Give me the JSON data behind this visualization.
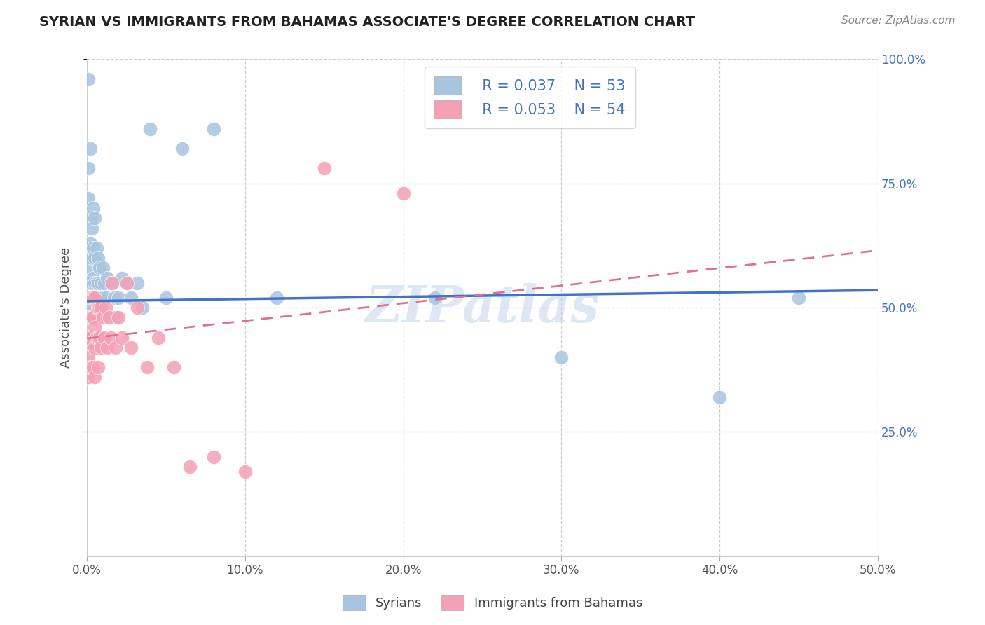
{
  "title": "SYRIAN VS IMMIGRANTS FROM BAHAMAS ASSOCIATE'S DEGREE CORRELATION CHART",
  "source": "Source: ZipAtlas.com",
  "ylabel": "Associate's Degree",
  "xlim": [
    0.0,
    0.5
  ],
  "ylim": [
    0.0,
    1.0
  ],
  "xticks": [
    0.0,
    0.1,
    0.2,
    0.3,
    0.4,
    0.5
  ],
  "xticklabels": [
    "0.0%",
    "10.0%",
    "20.0%",
    "30.0%",
    "40.0%",
    "50.0%"
  ],
  "yticks": [
    0.25,
    0.5,
    0.75,
    1.0
  ],
  "yticklabels": [
    "25.0%",
    "50.0%",
    "75.0%",
    "100.0%"
  ],
  "legend_R1": "R = 0.037",
  "legend_N1": "N = 53",
  "legend_R2": "R = 0.053",
  "legend_N2": "N = 54",
  "color_syrian": "#a8c4e0",
  "color_bahamas": "#f4a0b5",
  "color_text_blue": "#4472c4",
  "color_text_dark": "#222222",
  "reg_color_syrian": "#4472c4",
  "reg_color_bahamas": "#e07090",
  "grid_color": "#cccccc",
  "title_color": "#222222",
  "source_color": "#888888",
  "watermark_color": "#d0dff0",
  "syr_line_y0": 0.513,
  "syr_line_y1": 0.535,
  "bah_line_y0": 0.438,
  "bah_line_y1": 0.615,
  "syrians_x": [
    0.001,
    0.001,
    0.001,
    0.002,
    0.002,
    0.002,
    0.002,
    0.003,
    0.003,
    0.003,
    0.003,
    0.003,
    0.004,
    0.004,
    0.004,
    0.004,
    0.004,
    0.005,
    0.005,
    0.005,
    0.005,
    0.006,
    0.006,
    0.007,
    0.007,
    0.007,
    0.008,
    0.008,
    0.009,
    0.009,
    0.01,
    0.01,
    0.011,
    0.012,
    0.013,
    0.015,
    0.017,
    0.018,
    0.02,
    0.022,
    0.025,
    0.028,
    0.032,
    0.035,
    0.04,
    0.05,
    0.06,
    0.08,
    0.12,
    0.22,
    0.3,
    0.4,
    0.45
  ],
  "syrians_y": [
    0.96,
    0.78,
    0.72,
    0.68,
    0.63,
    0.58,
    0.82,
    0.66,
    0.6,
    0.55,
    0.52,
    0.5,
    0.7,
    0.62,
    0.56,
    0.52,
    0.48,
    0.68,
    0.6,
    0.55,
    0.5,
    0.62,
    0.55,
    0.6,
    0.55,
    0.5,
    0.58,
    0.52,
    0.55,
    0.5,
    0.58,
    0.52,
    0.55,
    0.52,
    0.56,
    0.55,
    0.52,
    0.48,
    0.52,
    0.56,
    0.55,
    0.52,
    0.55,
    0.5,
    0.86,
    0.52,
    0.82,
    0.86,
    0.52,
    0.52,
    0.4,
    0.32,
    0.52
  ],
  "bahamas_x": [
    0.0,
    0.0,
    0.0,
    0.001,
    0.001,
    0.001,
    0.001,
    0.001,
    0.002,
    0.002,
    0.002,
    0.002,
    0.003,
    0.003,
    0.003,
    0.003,
    0.004,
    0.004,
    0.004,
    0.004,
    0.005,
    0.005,
    0.005,
    0.005,
    0.006,
    0.006,
    0.007,
    0.007,
    0.007,
    0.008,
    0.008,
    0.009,
    0.009,
    0.01,
    0.011,
    0.012,
    0.013,
    0.014,
    0.015,
    0.016,
    0.018,
    0.02,
    0.022,
    0.025,
    0.028,
    0.032,
    0.038,
    0.045,
    0.055,
    0.065,
    0.08,
    0.1,
    0.15,
    0.2
  ],
  "bahamas_y": [
    0.52,
    0.48,
    0.44,
    0.52,
    0.48,
    0.44,
    0.4,
    0.36,
    0.52,
    0.48,
    0.44,
    0.38,
    0.52,
    0.48,
    0.43,
    0.38,
    0.52,
    0.48,
    0.43,
    0.38,
    0.52,
    0.46,
    0.42,
    0.36,
    0.5,
    0.44,
    0.5,
    0.44,
    0.38,
    0.5,
    0.44,
    0.5,
    0.42,
    0.48,
    0.44,
    0.5,
    0.42,
    0.48,
    0.44,
    0.55,
    0.42,
    0.48,
    0.44,
    0.55,
    0.42,
    0.5,
    0.38,
    0.44,
    0.38,
    0.18,
    0.2,
    0.17,
    0.78,
    0.73
  ]
}
